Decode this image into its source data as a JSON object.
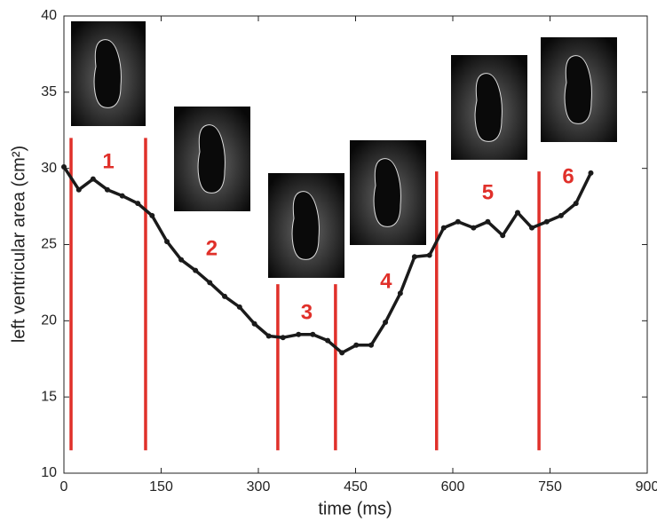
{
  "chart_data": {
    "type": "line",
    "xlabel": "time (ms)",
    "ylabel": "left ventricular area (cm²)",
    "xlim": [
      0,
      900
    ],
    "xticks": [
      0,
      150,
      300,
      450,
      600,
      750,
      900
    ],
    "ylim": [
      10,
      40
    ],
    "yticks": [
      10,
      15,
      20,
      25,
      30,
      35,
      40
    ],
    "x": [
      0,
      23,
      45,
      67,
      90,
      114,
      136,
      159,
      181,
      203,
      225,
      248,
      271,
      294,
      316,
      338,
      362,
      384,
      407,
      429,
      451,
      474,
      496,
      519,
      541,
      564,
      586,
      608,
      632,
      654,
      677,
      700,
      722,
      745,
      767,
      790,
      813
    ],
    "series": [
      {
        "color": "#1a1a1a",
        "values": [
          30.1,
          28.6,
          29.3,
          28.6,
          28.2,
          27.7,
          26.9,
          25.2,
          24.0,
          23.3,
          22.5,
          21.6,
          20.9,
          19.8,
          19.0,
          18.9,
          19.1,
          19.1,
          18.7,
          17.9,
          18.4,
          18.4,
          19.9,
          21.8,
          24.2,
          24.3,
          26.1,
          26.5,
          26.1,
          26.5,
          25.6,
          27.1,
          26.1,
          26.5,
          26.9,
          27.7,
          29.7
        ]
      }
    ],
    "phase_boundaries": {
      "color": "#e0302a",
      "x": [
        11,
        126,
        330,
        419,
        575,
        733
      ],
      "top": [
        32,
        32,
        22.4,
        22.4,
        29.8,
        29.8
      ],
      "bottom": 11.5
    },
    "phase_labels": [
      "1",
      "2",
      "3",
      "4",
      "5",
      "6"
    ]
  }
}
